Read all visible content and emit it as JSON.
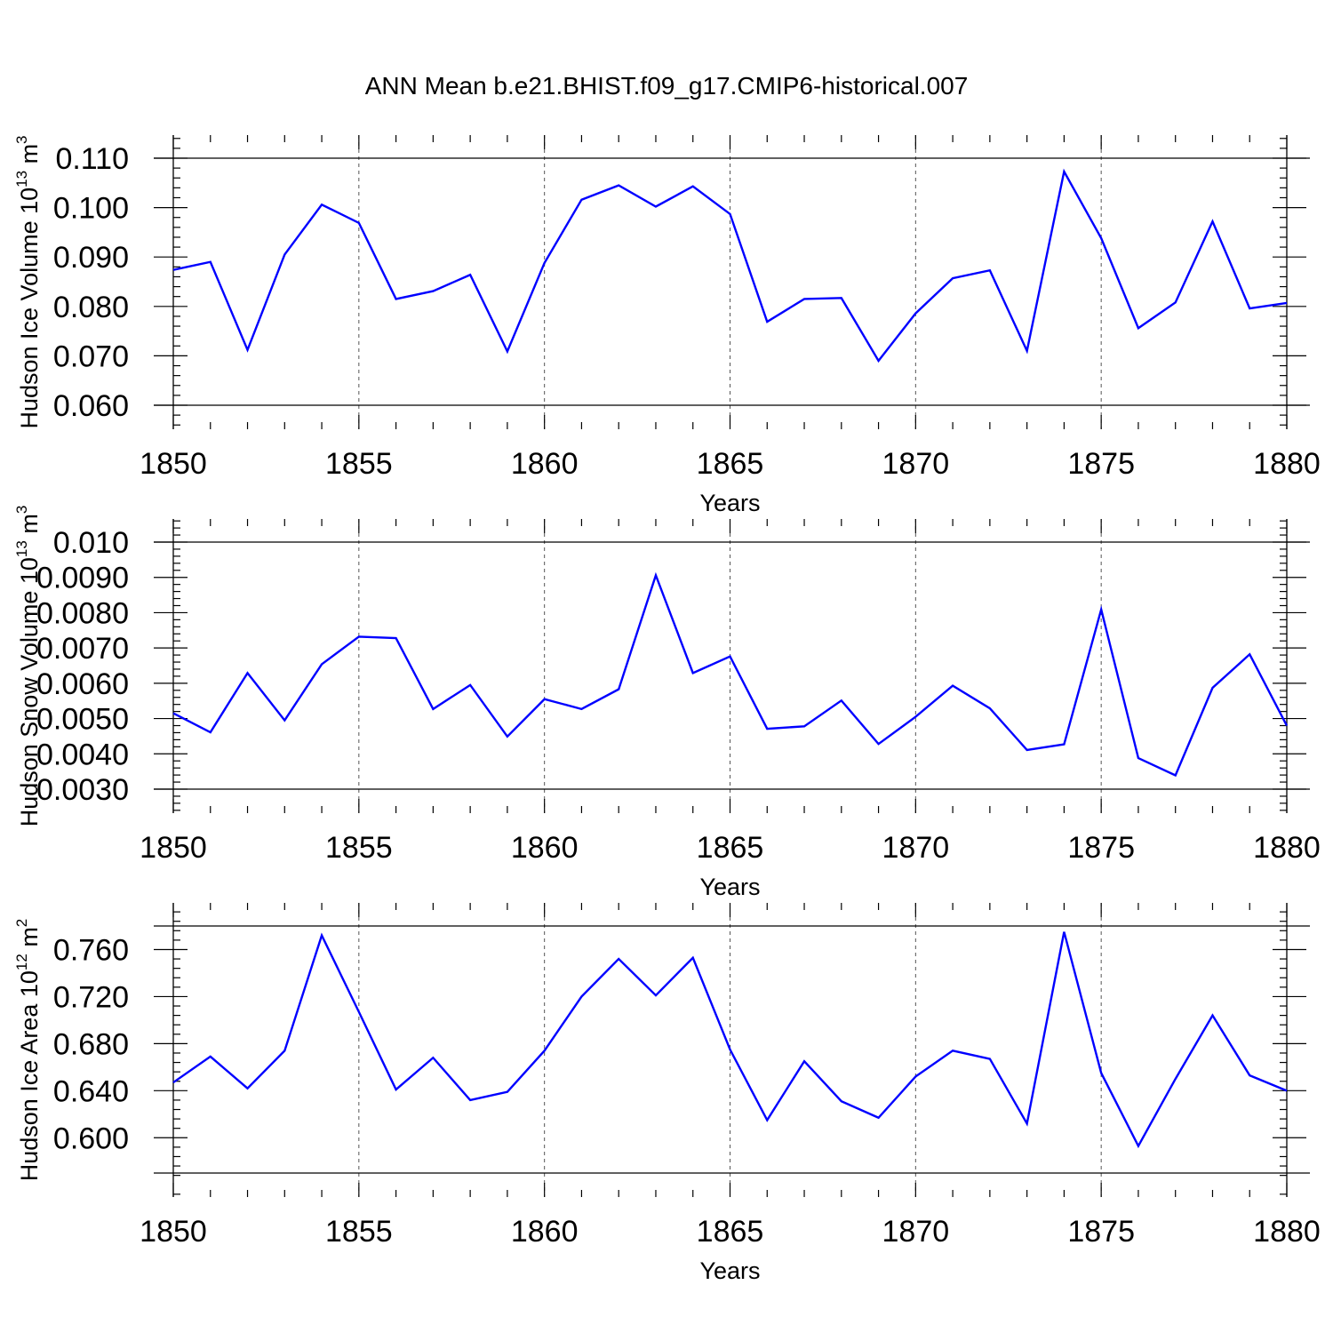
{
  "title": "ANN Mean b.e21.BHIST.f09_g17.CMIP6-historical.007",
  "series_color": "#0000ff",
  "chart_data": [
    {
      "type": "line",
      "ylabel": "Hudson Ice Volume 10",
      "ylabel_exponent": "13",
      "ylabel_unit": " m",
      "ylabel_unit_exponent": "3",
      "xlabel": "Years",
      "xlim": [
        1850,
        1880
      ],
      "ylim": [
        0.06,
        0.11
      ],
      "xticks": [
        1850,
        1855,
        1860,
        1865,
        1870,
        1875,
        1880
      ],
      "xtick_labels": [
        "1850",
        "1855",
        "1860",
        "1865",
        "1870",
        "1875",
        "1880"
      ],
      "yticks": [
        0.06,
        0.07,
        0.08,
        0.09,
        0.1,
        0.11
      ],
      "ytick_labels": [
        "0.060",
        "0.070",
        "0.080",
        "0.090",
        "0.100",
        "0.110"
      ],
      "x": [
        1850,
        1851,
        1852,
        1853,
        1854,
        1855,
        1856,
        1857,
        1858,
        1859,
        1860,
        1861,
        1862,
        1863,
        1864,
        1865,
        1866,
        1867,
        1868,
        1869,
        1870,
        1871,
        1872,
        1873,
        1874,
        1875,
        1876,
        1877,
        1878,
        1879,
        1880
      ],
      "values": [
        0.0874,
        0.089,
        0.0712,
        0.0905,
        0.1006,
        0.0969,
        0.0815,
        0.0831,
        0.0864,
        0.0709,
        0.0888,
        0.1016,
        0.1045,
        0.1002,
        0.1043,
        0.0987,
        0.0769,
        0.0815,
        0.0817,
        0.069,
        0.0786,
        0.0857,
        0.0873,
        0.071,
        0.1073,
        0.0938,
        0.0756,
        0.0808,
        0.0972,
        0.0796,
        0.0807
      ]
    },
    {
      "type": "line",
      "ylabel": "Hudson Snow Volume 10",
      "ylabel_exponent": "13",
      "ylabel_unit": " m",
      "ylabel_unit_exponent": "3",
      "xlabel": "Years",
      "xlim": [
        1850,
        1880
      ],
      "ylim": [
        0.003,
        0.01
      ],
      "xticks": [
        1850,
        1855,
        1860,
        1865,
        1870,
        1875,
        1880
      ],
      "xtick_labels": [
        "1850",
        "1855",
        "1860",
        "1865",
        "1870",
        "1875",
        "1880"
      ],
      "yticks": [
        0.003,
        0.004,
        0.005,
        0.006,
        0.007,
        0.008,
        0.009,
        0.01
      ],
      "ytick_labels": [
        "0.0030",
        "0.0040",
        "0.0050",
        "0.0060",
        "0.0070",
        "0.0080",
        "0.0090",
        "0.010"
      ],
      "x": [
        1850,
        1851,
        1852,
        1853,
        1854,
        1855,
        1856,
        1857,
        1858,
        1859,
        1860,
        1861,
        1862,
        1863,
        1864,
        1865,
        1866,
        1867,
        1868,
        1869,
        1870,
        1871,
        1872,
        1873,
        1874,
        1875,
        1876,
        1877,
        1878,
        1879,
        1880
      ],
      "values": [
        0.00515,
        0.00461,
        0.00629,
        0.00495,
        0.00654,
        0.00732,
        0.00728,
        0.00527,
        0.00595,
        0.00449,
        0.00555,
        0.00527,
        0.00583,
        0.00906,
        0.00629,
        0.00676,
        0.00471,
        0.00478,
        0.00551,
        0.00428,
        0.00505,
        0.00593,
        0.00529,
        0.00411,
        0.00427,
        0.00809,
        0.00388,
        0.00339,
        0.00587,
        0.00682,
        0.0048
      ]
    },
    {
      "type": "line",
      "ylabel": "Hudson Ice Area 10",
      "ylabel_exponent": "12",
      "ylabel_unit": " m",
      "ylabel_unit_exponent": "2",
      "xlabel": "Years",
      "xlim": [
        1850,
        1880
      ],
      "ylim": [
        0.57,
        0.78
      ],
      "xticks": [
        1850,
        1855,
        1860,
        1865,
        1870,
        1875,
        1880
      ],
      "xtick_labels": [
        "1850",
        "1855",
        "1860",
        "1865",
        "1870",
        "1875",
        "1880"
      ],
      "yticks": [
        0.6,
        0.64,
        0.68,
        0.72,
        0.76
      ],
      "ytick_labels": [
        "0.600",
        "0.640",
        "0.680",
        "0.720",
        "0.760"
      ],
      "x": [
        1850,
        1851,
        1852,
        1853,
        1854,
        1855,
        1856,
        1857,
        1858,
        1859,
        1860,
        1861,
        1862,
        1863,
        1864,
        1865,
        1866,
        1867,
        1868,
        1869,
        1870,
        1871,
        1872,
        1873,
        1874,
        1875,
        1876,
        1877,
        1878,
        1879,
        1880
      ],
      "values": [
        0.647,
        0.669,
        0.642,
        0.674,
        0.772,
        0.707,
        0.641,
        0.668,
        0.632,
        0.639,
        0.674,
        0.72,
        0.752,
        0.721,
        0.753,
        0.675,
        0.615,
        0.665,
        0.631,
        0.617,
        0.652,
        0.674,
        0.667,
        0.612,
        0.775,
        0.655,
        0.593,
        0.65,
        0.704,
        0.653,
        0.64
      ]
    }
  ]
}
